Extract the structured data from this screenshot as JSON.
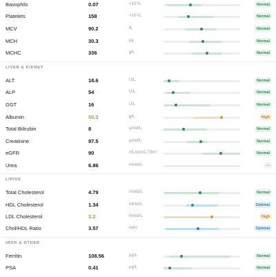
{
  "sections": [
    {
      "rows": [
        {
          "name": "Basophils",
          "value": 0.07,
          "unit": "×10⁹/L",
          "status": "Normal"
        },
        {
          "name": "Platelets",
          "value": 158,
          "unit": "×10⁹/L",
          "status": "Normal"
        },
        {
          "name": "MCV",
          "value": 90.2,
          "unit": "fL",
          "status": "Normal"
        },
        {
          "name": "MCH",
          "value": 30.3,
          "unit": "pg",
          "status": "Normal"
        },
        {
          "name": "MCHC",
          "value": 336,
          "unit": "g/L",
          "status": "Normal"
        }
      ]
    },
    {
      "title": "LIVER & KIDNEY",
      "rows": [
        {
          "name": "ALT",
          "value": 18.6,
          "unit": "U/L",
          "status": "Normal"
        },
        {
          "name": "ALP",
          "value": 54,
          "unit": "U/L",
          "status": "Normal"
        },
        {
          "name": "GGT",
          "value": 16,
          "unit": "U/L",
          "status": "Normal"
        },
        {
          "name": "Albumin",
          "value": 50.3,
          "unit": "g/L",
          "status": "High"
        },
        {
          "name": "Total Bilirubin",
          "value": 8,
          "unit": "µmol/L",
          "status": "Normal"
        },
        {
          "name": "Creatinine",
          "value": 97.5,
          "unit": "µmol/L",
          "status": "Normal"
        },
        {
          "name": "eGFR",
          "value": 90,
          "unit": "mL/min/1.73m²",
          "status": "Normal"
        },
        {
          "name": "Urea",
          "value": 6.86,
          "unit": "mmol/L",
          "status": "—"
        }
      ]
    },
    {
      "title": "LIPIDS",
      "rows": [
        {
          "name": "Total Cholesterol",
          "value": 4.79,
          "unit": "mmol/L",
          "status": "Normal"
        },
        {
          "name": "HDL Cholesterol",
          "value": 1.34,
          "unit": "mmol/L",
          "status": "Optimal"
        },
        {
          "name": "LDL Cholesterol",
          "value": 3.2,
          "unit": "mmol/L",
          "status": "High"
        },
        {
          "name": "Chol/HDL Ratio",
          "value": 3.57,
          "unit": "ratio",
          "status": "Optimal"
        }
      ]
    },
    {
      "title": "IRON & OTHER",
      "rows": [
        {
          "name": "Ferritin",
          "value": 108.56,
          "unit": "µg/L",
          "status": "Normal"
        },
        {
          "name": "PSA",
          "value": 0.41,
          "unit": "µg/L",
          "status": "Normal"
        }
      ]
    }
  ]
}
